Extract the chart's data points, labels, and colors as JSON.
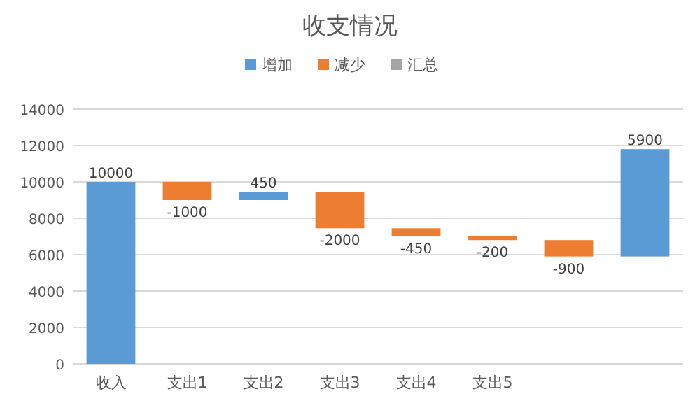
{
  "chart_data": {
    "type": "bar",
    "title": "收支情况",
    "categories": [
      "收入",
      "支出1",
      "支出2",
      "支出3",
      "支出4",
      "支出5",
      null,
      null
    ],
    "series": [
      {
        "name": "增加",
        "color": "#5b9bd5",
        "base": [
          0,
          null,
          9000,
          null,
          null,
          null,
          null,
          5900
        ],
        "values": [
          10000,
          null,
          450,
          null,
          null,
          null,
          null,
          5900
        ]
      },
      {
        "name": "减少",
        "color": "#ed7d31",
        "base": [
          null,
          10000,
          null,
          9450,
          7450,
          7000,
          6800,
          null
        ],
        "values": [
          null,
          -1000,
          null,
          -2000,
          -450,
          -200,
          -900,
          null
        ]
      },
      {
        "name": "汇总",
        "color": "#a5a5a5",
        "values": [
          null,
          null,
          null,
          null,
          null,
          null,
          null,
          null
        ]
      }
    ],
    "ylim": [
      0,
      14000
    ],
    "yticks": [
      0,
      2000,
      4000,
      6000,
      8000,
      10000,
      12000,
      14000
    ],
    "grid": "y",
    "legend": "top",
    "data_labels": true
  }
}
